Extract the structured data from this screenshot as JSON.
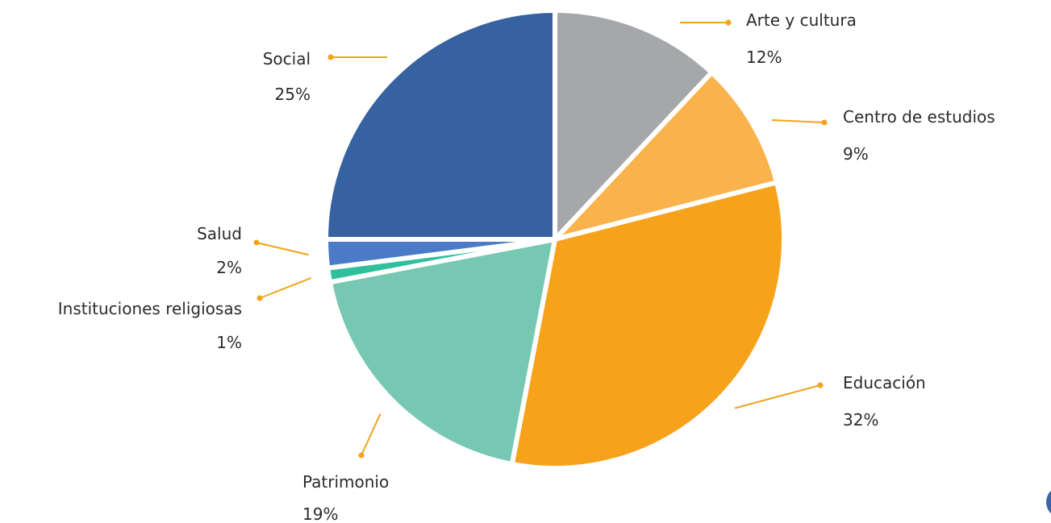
{
  "chart_data": {
    "type": "pie",
    "start_angle_deg": 0,
    "direction": "clockwise",
    "slices": [
      {
        "label": "Arte y cultura",
        "value": 12,
        "value_label": "12%",
        "color": "#a6a7ab"
      },
      {
        "label": "Centro de estudios",
        "value": 9,
        "value_label": "9%",
        "color": "#fab34c"
      },
      {
        "label": "Educación",
        "value": 32,
        "value_label": "32%",
        "color": "#f7a21b"
      },
      {
        "label": "Patrimonio",
        "value": 19,
        "value_label": "19%",
        "color": "#76c8b2"
      },
      {
        "label": "Instituciones religiosas",
        "value": 1,
        "value_label": "1%",
        "color": "#2fbf9c"
      },
      {
        "label": "Salud",
        "value": 2,
        "value_label": "2%",
        "color": "#4b7bc6"
      },
      {
        "label": "Social",
        "value": 25,
        "value_label": "25%",
        "color": "#3762a1"
      }
    ],
    "leader_color": "#f2a31b"
  }
}
